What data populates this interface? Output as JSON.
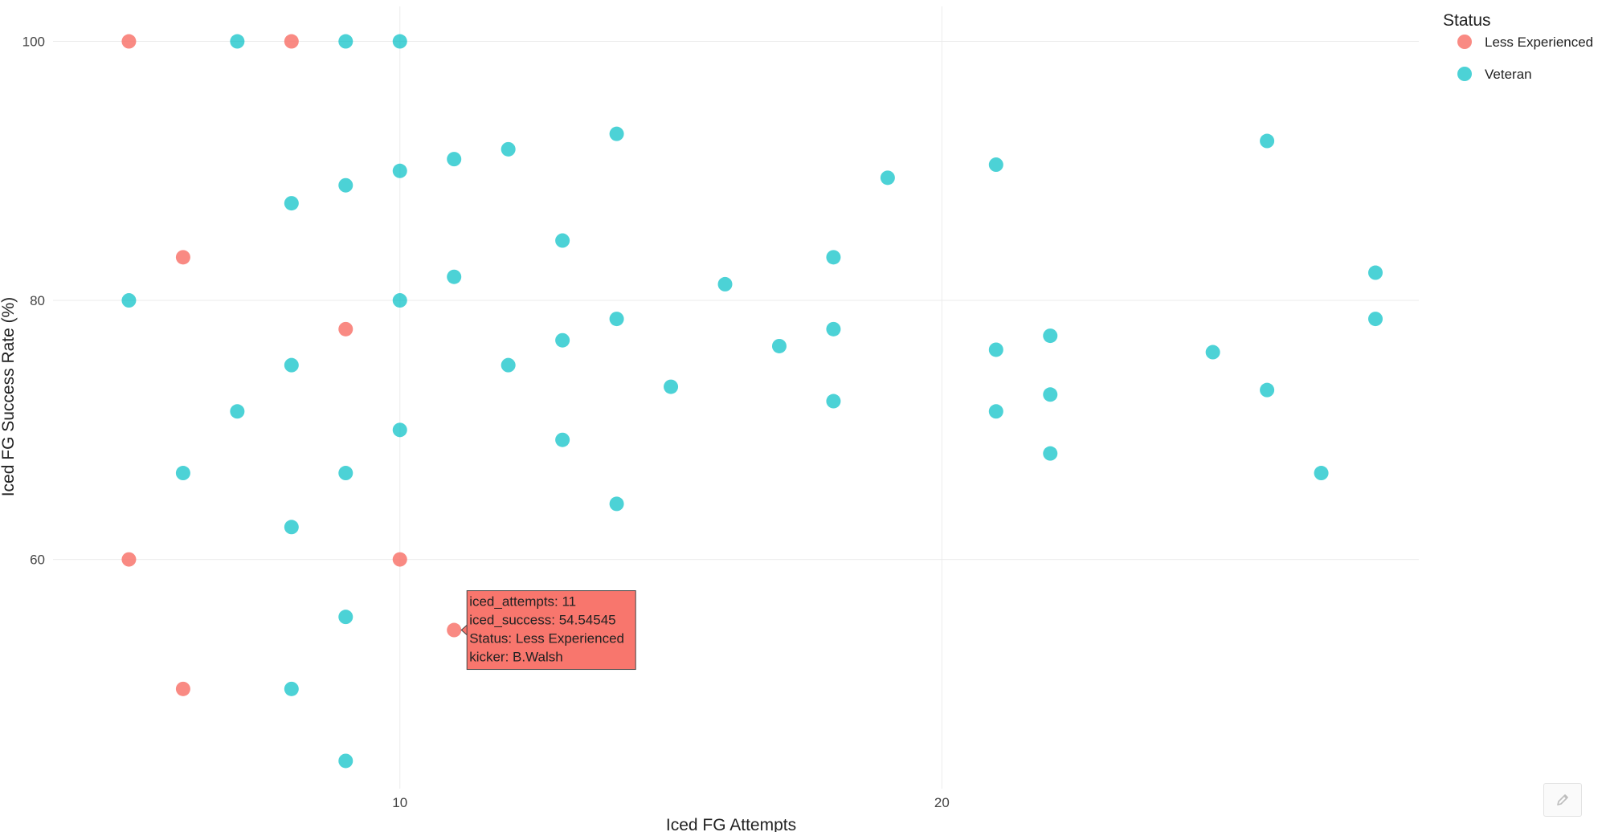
{
  "chart_data": {
    "type": "scatter",
    "title": "",
    "xlabel": "Iced FG Attempts",
    "ylabel": "Iced FG Success Rate (%)",
    "xlim": [
      3.6,
      28.8
    ],
    "ylim": [
      42.3,
      102.7
    ],
    "xticks": [
      10,
      20
    ],
    "yticks": [
      60,
      80,
      100
    ],
    "grid": true,
    "legend": {
      "title": "Status",
      "position": "top-right"
    },
    "series": [
      {
        "name": "Less Experienced",
        "color": "#F8766D",
        "points": [
          {
            "x": 5,
            "y": 100
          },
          {
            "x": 8,
            "y": 100
          },
          {
            "x": 6,
            "y": 83.33
          },
          {
            "x": 9,
            "y": 77.78
          },
          {
            "x": 5,
            "y": 60
          },
          {
            "x": 10,
            "y": 60
          },
          {
            "x": 11,
            "y": 54.54545
          },
          {
            "x": 6,
            "y": 50
          }
        ]
      },
      {
        "name": "Veteran",
        "color": "#00BFC4",
        "points": [
          {
            "x": 7,
            "y": 100
          },
          {
            "x": 9,
            "y": 100
          },
          {
            "x": 10,
            "y": 100
          },
          {
            "x": 14,
            "y": 92.86
          },
          {
            "x": 12,
            "y": 91.67
          },
          {
            "x": 11,
            "y": 90.91
          },
          {
            "x": 10,
            "y": 90
          },
          {
            "x": 9,
            "y": 88.89
          },
          {
            "x": 8,
            "y": 87.5
          },
          {
            "x": 13,
            "y": 84.62
          },
          {
            "x": 11,
            "y": 81.82
          },
          {
            "x": 5,
            "y": 80
          },
          {
            "x": 10,
            "y": 80
          },
          {
            "x": 14,
            "y": 78.57
          },
          {
            "x": 13,
            "y": 76.92
          },
          {
            "x": 8,
            "y": 75
          },
          {
            "x": 12,
            "y": 75
          },
          {
            "x": 7,
            "y": 71.43
          },
          {
            "x": 10,
            "y": 70
          },
          {
            "x": 13,
            "y": 69.23
          },
          {
            "x": 6,
            "y": 66.67
          },
          {
            "x": 9,
            "y": 66.67
          },
          {
            "x": 14,
            "y": 64.29
          },
          {
            "x": 8,
            "y": 62.5
          },
          {
            "x": 9,
            "y": 55.56
          },
          {
            "x": 8,
            "y": 50
          },
          {
            "x": 9,
            "y": 44.44
          },
          {
            "x": 15,
            "y": 73.33
          },
          {
            "x": 16,
            "y": 81.25
          },
          {
            "x": 17,
            "y": 76.47
          },
          {
            "x": 18,
            "y": 83.33
          },
          {
            "x": 18,
            "y": 77.78
          },
          {
            "x": 18,
            "y": 72.22
          },
          {
            "x": 19,
            "y": 89.47
          },
          {
            "x": 21,
            "y": 90.48
          },
          {
            "x": 21,
            "y": 76.19
          },
          {
            "x": 21,
            "y": 71.43
          },
          {
            "x": 22,
            "y": 77.27
          },
          {
            "x": 22,
            "y": 72.73
          },
          {
            "x": 22,
            "y": 68.18
          },
          {
            "x": 25,
            "y": 76
          },
          {
            "x": 26,
            "y": 92.31
          },
          {
            "x": 26,
            "y": 73.08
          },
          {
            "x": 27,
            "y": 66.67
          },
          {
            "x": 28,
            "y": 82.14
          },
          {
            "x": 28,
            "y": 78.57
          }
        ]
      }
    ],
    "hover": {
      "x": 11,
      "y": 54.54545,
      "color": "#F8766D",
      "lines": [
        "iced_attempts: 11",
        "iced_success:  54.54545",
        "Status: Less Experienced",
        "kicker: B.Walsh"
      ]
    }
  },
  "modebar": {
    "icon": "pencil-icon"
  }
}
